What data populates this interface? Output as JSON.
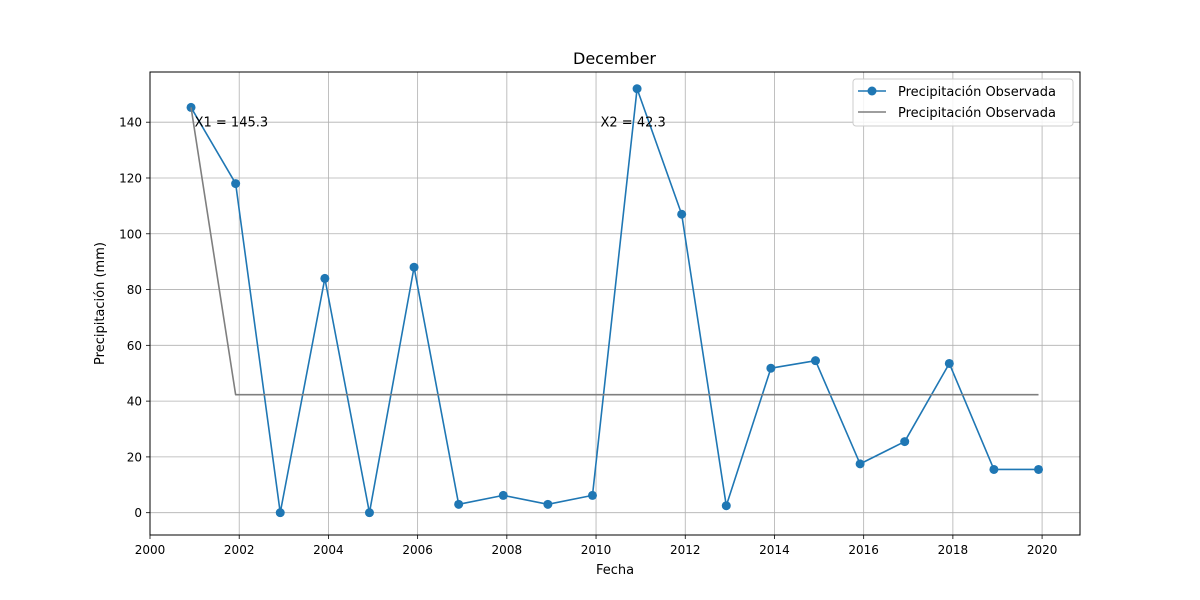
{
  "chart_data": {
    "type": "line",
    "title": "December",
    "xlabel": "Fecha",
    "ylabel": "Precipitación (mm)",
    "xlim": [
      2000.0,
      2020.85
    ],
    "ylim": [
      -8,
      158
    ],
    "x_ticks": [
      2000,
      2002,
      2004,
      2006,
      2008,
      2010,
      2012,
      2014,
      2016,
      2018,
      2020
    ],
    "y_ticks": [
      0,
      20,
      40,
      60,
      80,
      100,
      120,
      140
    ],
    "grid": true,
    "legend_position": "top-right",
    "series": [
      {
        "name": "Precipitación Observada",
        "style": "line-with-markers",
        "color": "#1f77b4",
        "x": [
          2000.92,
          2001.92,
          2002.92,
          2003.92,
          2004.92,
          2005.92,
          2006.92,
          2007.92,
          2008.92,
          2009.92,
          2010.92,
          2011.92,
          2012.92,
          2013.92,
          2014.92,
          2015.92,
          2016.92,
          2017.92,
          2018.92,
          2019.92
        ],
        "values": [
          145.3,
          118,
          0,
          84,
          0,
          88,
          3,
          6.2,
          3,
          6.2,
          152,
          107,
          2.5,
          51.8,
          54.5,
          17.5,
          25.5,
          53.5,
          15.5,
          15.5
        ]
      },
      {
        "name": "Precipitación Observada",
        "style": "line",
        "color": "#7f7f7f",
        "x": [
          2000.92,
          2001.92,
          2019.92
        ],
        "values": [
          145.3,
          42.3,
          42.3
        ]
      }
    ],
    "annotations": [
      {
        "text": "X1 = 145.3",
        "x": 2001.0,
        "y": 140
      },
      {
        "text": "X2 = 42.3",
        "x": 2010.1,
        "y": 140
      }
    ]
  }
}
